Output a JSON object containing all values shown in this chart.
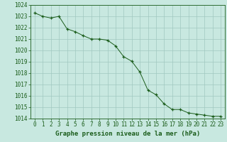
{
  "x": [
    0,
    1,
    2,
    3,
    4,
    5,
    6,
    7,
    8,
    9,
    10,
    11,
    12,
    13,
    14,
    15,
    16,
    17,
    18,
    19,
    20,
    21,
    22,
    23
  ],
  "y": [
    1023.3,
    1023.0,
    1022.85,
    1023.0,
    1021.9,
    1021.65,
    1021.3,
    1021.0,
    1021.0,
    1020.9,
    1020.4,
    1019.45,
    1019.05,
    1018.1,
    1016.5,
    1016.1,
    1015.3,
    1014.8,
    1014.8,
    1014.5,
    1014.4,
    1014.3,
    1014.2,
    1014.2
  ],
  "ylim": [
    1014,
    1024
  ],
  "xlim_min": -0.5,
  "xlim_max": 23.5,
  "yticks": [
    1014,
    1015,
    1016,
    1017,
    1018,
    1019,
    1020,
    1021,
    1022,
    1023,
    1024
  ],
  "xticks": [
    0,
    1,
    2,
    3,
    4,
    5,
    6,
    7,
    8,
    9,
    10,
    11,
    12,
    13,
    14,
    15,
    16,
    17,
    18,
    19,
    20,
    21,
    22,
    23
  ],
  "line_color": "#1a5c1a",
  "marker": "+",
  "bg_color": "#c8e8e0",
  "grid_color": "#a0c8c0",
  "text_color": "#1a5c1a",
  "xlabel": "Graphe pression niveau de la mer (hPa)",
  "tick_fontsize": 5.5,
  "label_fontsize": 6.5
}
